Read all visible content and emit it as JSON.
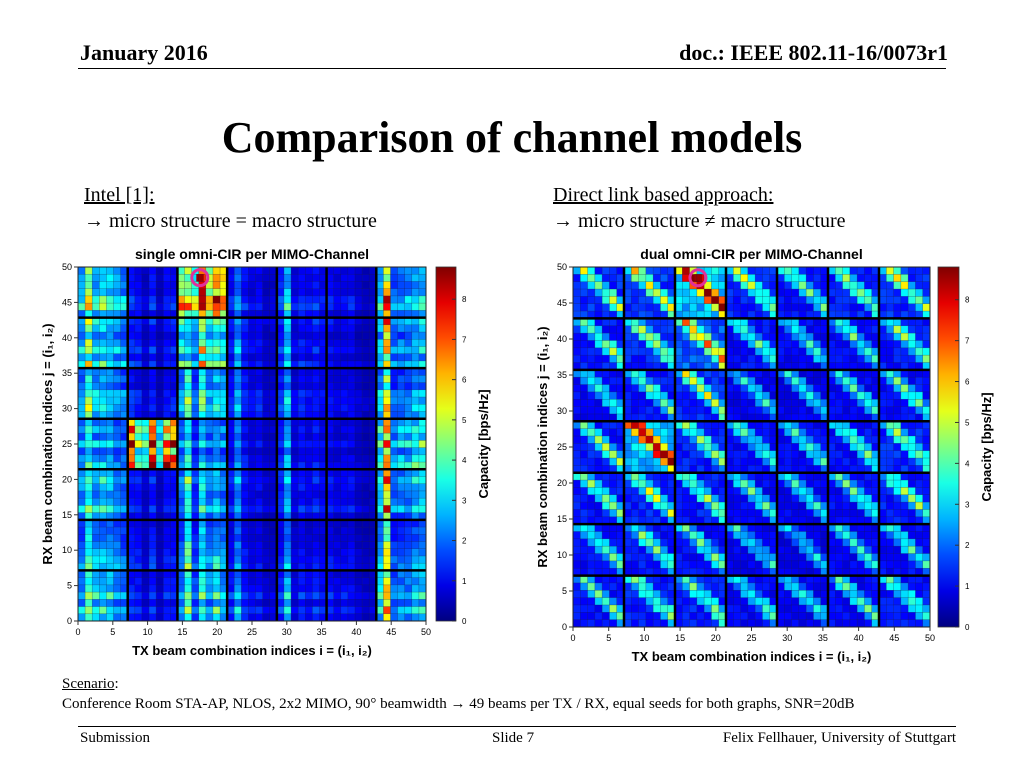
{
  "header": {
    "date": "January 2016",
    "doc": "doc.: IEEE 802.11-16/0073r1"
  },
  "title": "Comparison of channel models",
  "left": {
    "heading": "Intel [1]:",
    "subheading": "→ micro structure = macro structure"
  },
  "right": {
    "heading": "Direct link based approach:",
    "subheading": "→ micro structure ≠ macro structure"
  },
  "scenario": {
    "label": "Scenario",
    "colon": ":",
    "text": "Conference Room STA-AP, NLOS, 2x2 MIMO, 90° beamwidth → 49 beams per TX / RX, equal seeds for both graphs, SNR=20dB"
  },
  "footer": {
    "left": "Submission",
    "center": "Slide 7",
    "right": "Felix Fellhauer, University of Stuttgart"
  },
  "colors": {
    "grid_lines": "#000000",
    "highlight_circle": "#e0309c",
    "colormap": [
      "#00008f",
      "#0000ff",
      "#00ffff",
      "#ffff00",
      "#ff0000",
      "#800000"
    ]
  },
  "chart_data": [
    {
      "type": "heatmap",
      "title": "single omni-CIR per MIMO-Channel",
      "xlabel": "TX beam combination indices i = (i₁, i₂)",
      "ylabel": "RX beam combination indices j = (i₁, i₂)",
      "colorbar_label": "Capacity [bps/Hz]",
      "xlim": [
        0,
        50
      ],
      "ylim": [
        0,
        50
      ],
      "clim": [
        0,
        8.8
      ],
      "xticks": [
        0,
        5,
        10,
        15,
        20,
        25,
        30,
        35,
        40,
        45,
        50
      ],
      "yticks": [
        0,
        5,
        10,
        15,
        20,
        25,
        30,
        35,
        40,
        45,
        50
      ],
      "cticks": [
        0,
        1,
        2,
        3,
        4,
        5,
        6,
        7,
        8
      ],
      "grid_size": 49,
      "block_size": 7,
      "structure": "micro structure = macro structure",
      "block_levels": [
        [
          3.0,
          1.0,
          6.2,
          1.0,
          1.3,
          0.9,
          2.5
        ],
        [
          2.8,
          1.0,
          3.8,
          1.0,
          1.2,
          0.8,
          2.3
        ],
        [
          2.4,
          0.9,
          2.6,
          1.0,
          1.1,
          0.8,
          2.0
        ],
        [
          2.4,
          6.0,
          2.4,
          1.0,
          1.2,
          0.8,
          3.0
        ],
        [
          2.6,
          1.0,
          2.5,
          1.0,
          1.2,
          0.9,
          2.4
        ],
        [
          2.2,
          1.0,
          2.4,
          0.9,
          1.0,
          0.8,
          1.9
        ],
        [
          2.7,
          1.0,
          2.8,
          1.1,
          1.2,
          0.9,
          2.4
        ]
      ],
      "max_value": 8.6,
      "max_at": [
        17.5,
        48.5
      ]
    },
    {
      "type": "heatmap",
      "title": "dual omni-CIR per MIMO-Channel",
      "xlabel": "TX beam combination indices i = (i₁, i₂)",
      "ylabel": "RX beam combination indices j = (i₁, i₂)",
      "colorbar_label": "Capacity [bps/Hz]",
      "xlim": [
        0,
        50
      ],
      "ylim": [
        0,
        50
      ],
      "clim": [
        0,
        8.8
      ],
      "xticks": [
        0,
        5,
        10,
        15,
        20,
        25,
        30,
        35,
        40,
        45,
        50
      ],
      "yticks": [
        0,
        5,
        10,
        15,
        20,
        25,
        30,
        35,
        40,
        45,
        50
      ],
      "cticks": [
        0,
        1,
        2,
        3,
        4,
        5,
        6,
        7,
        8
      ],
      "grid_size": 49,
      "block_size": 7,
      "structure": "micro structure ≠ macro structure",
      "block_levels": [
        [
          2.6,
          2.8,
          5.2,
          2.5,
          2.2,
          2.4,
          2.6
        ],
        [
          2.3,
          2.6,
          3.4,
          2.1,
          1.9,
          2.1,
          2.3
        ],
        [
          2.0,
          2.2,
          2.6,
          1.8,
          1.7,
          1.9,
          2.1
        ],
        [
          2.3,
          5.0,
          2.4,
          2.0,
          1.9,
          2.1,
          2.5
        ],
        [
          2.3,
          2.5,
          2.4,
          2.0,
          1.8,
          2.0,
          2.3
        ],
        [
          2.0,
          2.2,
          2.1,
          1.8,
          1.6,
          1.8,
          2.0
        ],
        [
          2.2,
          2.4,
          2.4,
          1.9,
          1.8,
          2.0,
          2.2
        ]
      ],
      "max_value": 8.6,
      "max_at": [
        17.5,
        48.5
      ]
    }
  ]
}
